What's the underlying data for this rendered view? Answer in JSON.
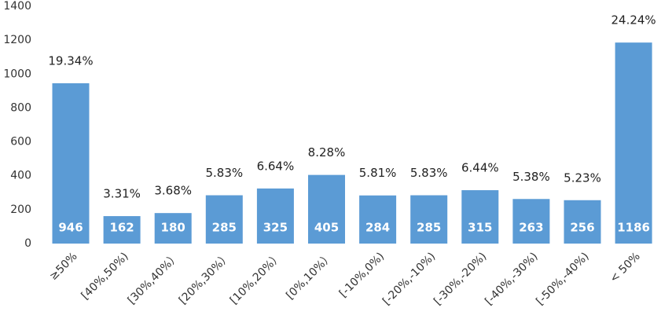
{
  "chart_data": {
    "type": "bar",
    "categories": [
      "≥50%",
      "[40%,50%)",
      "[30%,40%）",
      "[20%,30%）",
      "[10%,20%）",
      "[0%,10%）",
      "[-10%,0%)",
      "[-20%,-10%)",
      "[-30%,-20%)",
      "[-40%,-30%)",
      "[-50%,-40%)",
      "< 50%"
    ],
    "values": [
      946,
      162,
      180,
      285,
      325,
      405,
      284,
      285,
      315,
      263,
      256,
      1186
    ],
    "value_labels": [
      "946",
      "162",
      "180",
      "285",
      "325",
      "405",
      "284",
      "285",
      "315",
      "263",
      "256",
      "1186"
    ],
    "percent_labels": [
      "19.34%",
      "3.31%",
      "3.68%",
      "5.83%",
      "6.64%",
      "8.28%",
      "5.81%",
      "5.83%",
      "6.44%",
      "5.38%",
      "5.23%",
      "24.24%"
    ],
    "ylim": [
      0,
      1400
    ],
    "yticks": [
      "0",
      "200",
      "400",
      "600",
      "800",
      "1000",
      "1200",
      "1400"
    ],
    "grid": false,
    "legend": "none",
    "title": "",
    "xlabel": "",
    "ylabel": "",
    "bar_color": "#5B9BD5"
  }
}
